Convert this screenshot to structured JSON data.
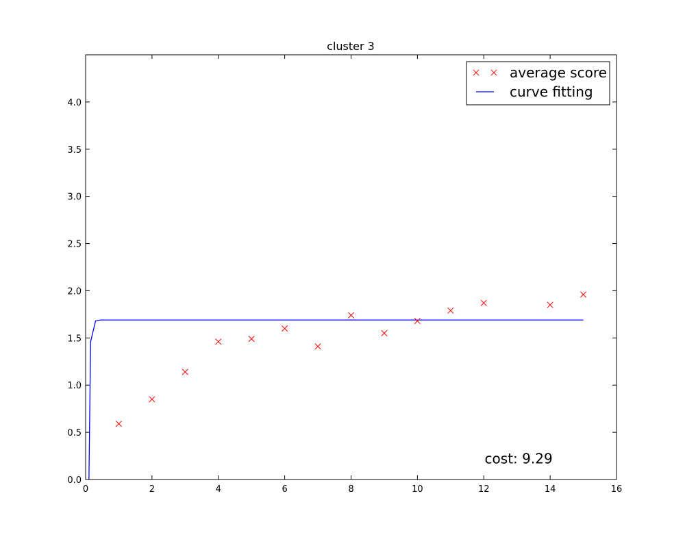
{
  "chart_data": {
    "type": "scatter",
    "title": "cluster 3",
    "xlabel": "",
    "ylabel": "",
    "xlim": [
      0,
      16
    ],
    "ylim": [
      0,
      4.5
    ],
    "xticks": [
      0,
      2,
      4,
      6,
      8,
      10,
      12,
      14,
      16
    ],
    "yticks": [
      0.0,
      0.5,
      1.0,
      1.5,
      2.0,
      2.5,
      3.0,
      3.5,
      4.0
    ],
    "ytick_labels": [
      "0.0",
      "0.5",
      "1.0",
      "1.5",
      "2.0",
      "2.5",
      "3.0",
      "3.5",
      "4.0"
    ],
    "xtick_labels": [
      "0",
      "2",
      "4",
      "6",
      "8",
      "10",
      "12",
      "14",
      "16"
    ],
    "grid": false,
    "legend_position": "top-right",
    "series": [
      {
        "name": "average score",
        "kind": "scatter",
        "marker": "x",
        "color": "#ff0000",
        "x": [
          1,
          2,
          3,
          4,
          5,
          6,
          7,
          8,
          9,
          10,
          11,
          12,
          14,
          15
        ],
        "y": [
          0.59,
          0.85,
          1.14,
          1.46,
          1.49,
          1.6,
          1.41,
          1.74,
          1.55,
          1.68,
          1.79,
          1.87,
          1.85,
          1.96
        ]
      },
      {
        "name": "curve fitting",
        "kind": "line",
        "color": "#0000ff",
        "x": [
          0.1,
          0.15,
          0.3,
          0.45,
          1,
          2,
          4,
          6,
          8,
          10,
          12,
          14,
          15
        ],
        "y": [
          0.0,
          1.46,
          1.68,
          1.69,
          1.69,
          1.69,
          1.69,
          1.69,
          1.69,
          1.69,
          1.69,
          1.69,
          1.69
        ]
      }
    ],
    "annotations": [
      {
        "text": "cost: 9.29",
        "x": 13.05,
        "y": 0.22
      }
    ]
  }
}
